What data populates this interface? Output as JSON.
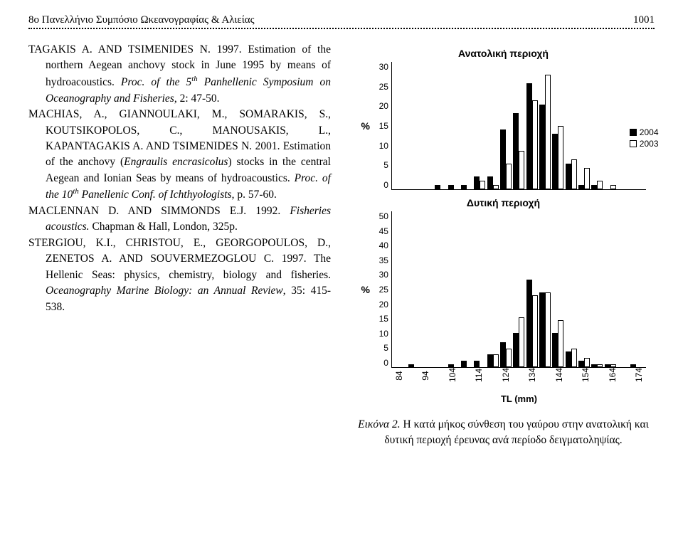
{
  "header": {
    "running_title": "8ο Πανελλήνιο Συμπόσιο Ωκεανογραφίας & Αλιείας",
    "page_number": "1001"
  },
  "references": [
    {
      "authors": "TAGAKIS A. AND TSIMENIDES N.",
      "year": "1997.",
      "title": "Estimation of the northern Aegean anchovy stock in June 1995 by means of hydroacoustics.",
      "in_ital": "Proc. of the 5",
      "sup": "th",
      "in_ital2": " Panhellenic Symposium on Oceanography and Fisheries",
      "tail": ", 2: 47-50."
    },
    {
      "authors": "MACHIAS, A., GIANNOULAKI, M., SOMARAKIS, S., KOUTSIKOPOLOS, C., MANOUSAKIS, L., KAPANTAGAKIS A. AND TSIMENIDES N.",
      "year": "2001.",
      "title_lead": "Estimation of the anchovy (",
      "title_ital": "Engraulis encrasicolus",
      "title_tail": ") stocks in the central Aegean and Ionian Seas by means of hydroacoustics.",
      "in_ital": "Proc. of the 10",
      "sup": "th",
      "in_ital2": " Panellenic Conf. of Ichthyologists",
      "tail": ", p. 57-60."
    },
    {
      "authors": "MACLENNAN D. AND SIMMONDS E.J.",
      "year": "1992.",
      "title_ital": "Fisheries acoustics.",
      "tail": " Chapman & Hall, London, 325p."
    },
    {
      "authors": "STERGIOU, K.I., CHRISTOU, E., GEORGOPOULOS, D., ZENETOS A. AND SOUVERMEZOGLOU C.",
      "year": "1997.",
      "title": "The Hellenic Seas: physics, chemistry, biology and fisheries.",
      "in_ital": "Oceanography Marine Biology: an Annual Review",
      "tail": ", 35: 415-538."
    }
  ],
  "chart_top": {
    "type": "bar",
    "title": "Ανατολική περιοχή",
    "ylabel": "%",
    "ylim": [
      0,
      30
    ],
    "yticks": [
      0,
      5,
      10,
      15,
      20,
      25,
      30
    ],
    "series": [
      {
        "name": "2004",
        "color": "#000000",
        "values": [
          0,
          0,
          0,
          1,
          1,
          1,
          3,
          3,
          14,
          18,
          25,
          20,
          13,
          6,
          1,
          1,
          0,
          0,
          0
        ]
      },
      {
        "name": "2003",
        "color": "#ffffff",
        "values": [
          0,
          0,
          0,
          0,
          0,
          0,
          2,
          1,
          6,
          9,
          21,
          27,
          15,
          7,
          5,
          2,
          1,
          0,
          0
        ]
      }
    ],
    "bar_colors": {
      "black": "#000000",
      "white_border": "#000000"
    },
    "background_color": "#ffffff"
  },
  "chart_bottom": {
    "type": "bar",
    "title": "Δυτική περιοχή",
    "ylabel": "%",
    "ylim": [
      0,
      50
    ],
    "yticks": [
      0,
      5,
      10,
      15,
      20,
      25,
      30,
      35,
      40,
      45,
      50
    ],
    "series": [
      {
        "name": "2004",
        "color": "#000000",
        "values": [
          0,
          1,
          0,
          0,
          1,
          2,
          2,
          4,
          8,
          11,
          28,
          24,
          11,
          5,
          2,
          1,
          1,
          0,
          1
        ]
      },
      {
        "name": "2003",
        "color": "#ffffff",
        "values": [
          0,
          0,
          0,
          0,
          0,
          0,
          0,
          4,
          6,
          16,
          23,
          24,
          15,
          6,
          3,
          1,
          1,
          0,
          0
        ]
      }
    ],
    "x_ticks": [
      "84",
      "94",
      "104",
      "114",
      "124",
      "134",
      "144",
      "154",
      "164",
      "174"
    ],
    "xlabel": "TL (mm)",
    "bar_colors": {
      "black": "#000000",
      "white_border": "#000000"
    },
    "background_color": "#ffffff"
  },
  "legend": {
    "items": [
      {
        "label": "2004",
        "swatch": "black"
      },
      {
        "label": "2003",
        "swatch": "white"
      }
    ]
  },
  "caption": {
    "lead_ital": "Εικόνα 2.",
    "text": " Η κατά μήκος σύνθεση του γαύρου στην ανατολική και δυτική περιοχή έρευνας ανά περίοδο δειγματοληψίας."
  },
  "styling": {
    "font_body": "Georgia, Times New Roman, serif",
    "font_chart": "Arial, sans-serif",
    "body_fontsize": 15.5,
    "chart_title_fontsize": 14,
    "tick_fontsize": 12,
    "page_bg": "#ffffff",
    "text_color": "#000000"
  }
}
